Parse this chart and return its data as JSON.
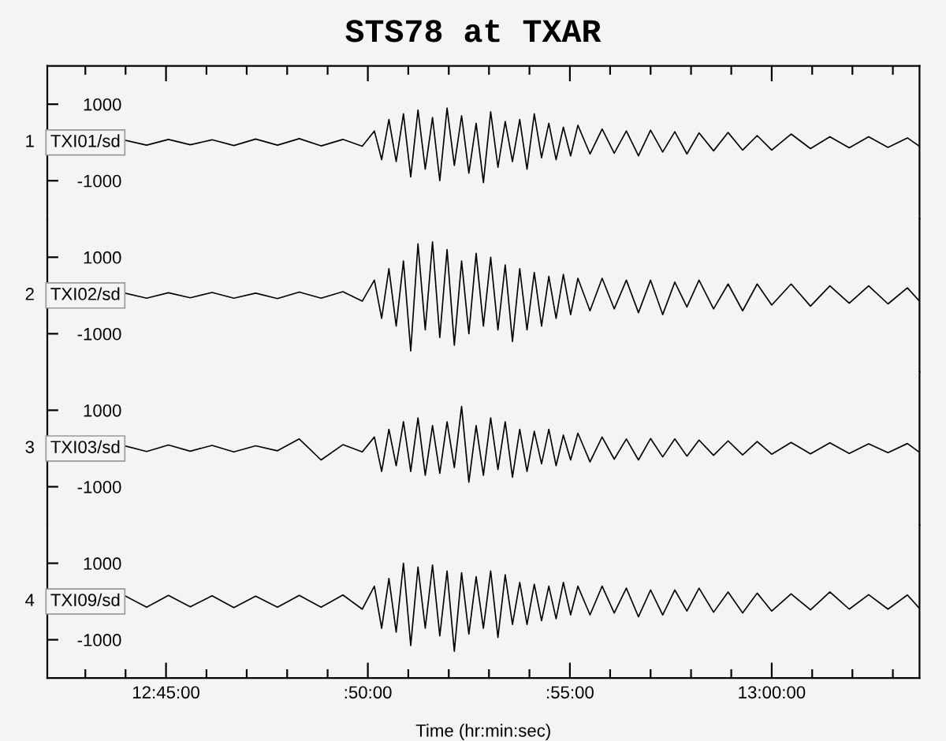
{
  "chart_data": [
    {
      "type": "line",
      "title": "STS78 at TXAR",
      "ylabel": "1",
      "tick_labels": "y",
      "xlim": [
        12.701,
        13.061
      ],
      "ylim": [
        -2000,
        2000
      ],
      "yticks": [
        1000,
        -1000
      ],
      "xticks": [
        {
          "value": 12.7167,
          "label": null
        },
        {
          "value": 12.7333,
          "label": null
        },
        {
          "value": 12.75,
          "label": null
        },
        {
          "value": 12.7667,
          "label": null
        },
        {
          "value": 12.7833,
          "label": null
        },
        {
          "value": 12.8,
          "label": null
        },
        {
          "value": 12.8167,
          "label": null
        },
        {
          "value": 12.8333,
          "label": null
        },
        {
          "value": 12.85,
          "label": null
        },
        {
          "value": 12.8667,
          "label": null
        },
        {
          "value": 12.8833,
          "label": null
        },
        {
          "value": 12.9,
          "label": null
        },
        {
          "value": 12.9167,
          "label": null
        },
        {
          "value": 12.9333,
          "label": null
        },
        {
          "value": 12.95,
          "label": null
        },
        {
          "value": 12.9667,
          "label": null
        },
        {
          "value": 12.9833,
          "label": null
        },
        {
          "value": 13.0,
          "label": null
        },
        {
          "value": 13.0167,
          "label": null
        },
        {
          "value": 13.0333,
          "label": null
        },
        {
          "value": 13.05,
          "label": null
        }
      ],
      "x": [
        12.733,
        12.742,
        12.751,
        12.76,
        12.769,
        12.778,
        12.787,
        12.796,
        12.805,
        12.814,
        12.823,
        12.831,
        12.836,
        12.839,
        12.842,
        12.845,
        12.848,
        12.851,
        12.854,
        12.857,
        12.86,
        12.863,
        12.866,
        12.869,
        12.872,
        12.875,
        12.878,
        12.881,
        12.884,
        12.887,
        12.89,
        12.893,
        12.896,
        12.899,
        12.902,
        12.905,
        12.908,
        12.911,
        12.914,
        12.917,
        12.92,
        12.925,
        12.93,
        12.935,
        12.94,
        12.945,
        12.95,
        12.955,
        12.96,
        12.965,
        12.97,
        12.976,
        12.982,
        12.988,
        12.994,
        13.0,
        13.008,
        13.016,
        13.024,
        13.032,
        13.04,
        13.048,
        13.056,
        13.061
      ],
      "series": [
        {
          "name": "TXI01/sd",
          "color": "#000000",
          "values": [
            60,
            -70,
            80,
            -60,
            70,
            -80,
            90,
            -70,
            100,
            -90,
            80,
            -100,
            300,
            -450,
            600,
            -500,
            750,
            -900,
            850,
            -700,
            650,
            -1000,
            900,
            -600,
            700,
            -800,
            500,
            -1050,
            800,
            -650,
            550,
            -500,
            600,
            -700,
            750,
            -400,
            500,
            -450,
            400,
            -350,
            450,
            -300,
            350,
            -280,
            300,
            -350,
            320,
            -250,
            280,
            -300,
            250,
            -220,
            260,
            -200,
            180,
            -200,
            220,
            -160,
            150,
            -140,
            150,
            -130,
            120,
            -100
          ]
        }
      ]
    },
    {
      "type": "line",
      "ylabel": "2",
      "tick_labels": "y",
      "xlim": [
        12.701,
        13.061
      ],
      "ylim": [
        -2000,
        2000
      ],
      "yticks": [
        1000,
        -1000
      ],
      "x": [
        12.733,
        12.742,
        12.751,
        12.76,
        12.769,
        12.778,
        12.787,
        12.796,
        12.805,
        12.814,
        12.823,
        12.831,
        12.836,
        12.839,
        12.842,
        12.845,
        12.848,
        12.851,
        12.854,
        12.857,
        12.86,
        12.863,
        12.866,
        12.869,
        12.872,
        12.875,
        12.878,
        12.881,
        12.884,
        12.887,
        12.89,
        12.893,
        12.896,
        12.899,
        12.902,
        12.905,
        12.908,
        12.911,
        12.914,
        12.917,
        12.92,
        12.925,
        12.93,
        12.935,
        12.94,
        12.945,
        12.95,
        12.955,
        12.96,
        12.965,
        12.97,
        12.976,
        12.982,
        12.988,
        12.994,
        13.0,
        13.008,
        13.016,
        13.024,
        13.032,
        13.04,
        13.048,
        13.056,
        13.061
      ],
      "series": [
        {
          "name": "TXI02/sd",
          "color": "#000000",
          "values": [
            60,
            -70,
            70,
            -60,
            80,
            -70,
            60,
            -80,
            90,
            -70,
            100,
            -150,
            400,
            -600,
            700,
            -800,
            900,
            -1450,
            1350,
            -900,
            1400,
            -1100,
            1200,
            -1300,
            900,
            -1000,
            1100,
            -800,
            1000,
            -900,
            800,
            -1200,
            700,
            -900,
            600,
            -800,
            500,
            -600,
            550,
            -500,
            450,
            -400,
            450,
            -350,
            400,
            -450,
            400,
            -500,
            350,
            -300,
            400,
            -350,
            300,
            -400,
            300,
            -250,
            300,
            -280,
            250,
            -200,
            250,
            -220,
            200,
            -150
          ]
        }
      ]
    },
    {
      "type": "line",
      "ylabel": "3",
      "tick_labels": "y",
      "xlim": [
        12.701,
        13.061
      ],
      "ylim": [
        -2000,
        2000
      ],
      "yticks": [
        1000,
        -1000
      ],
      "x": [
        12.733,
        12.742,
        12.751,
        12.76,
        12.769,
        12.778,
        12.787,
        12.796,
        12.805,
        12.814,
        12.823,
        12.831,
        12.836,
        12.839,
        12.842,
        12.845,
        12.848,
        12.851,
        12.854,
        12.857,
        12.86,
        12.863,
        12.866,
        12.869,
        12.872,
        12.875,
        12.878,
        12.881,
        12.884,
        12.887,
        12.89,
        12.893,
        12.896,
        12.899,
        12.902,
        12.905,
        12.908,
        12.911,
        12.914,
        12.917,
        12.92,
        12.925,
        12.93,
        12.935,
        12.94,
        12.945,
        12.95,
        12.955,
        12.96,
        12.965,
        12.97,
        12.976,
        12.982,
        12.988,
        12.994,
        13.0,
        13.008,
        13.016,
        13.024,
        13.032,
        13.04,
        13.048,
        13.056,
        13.061
      ],
      "series": [
        {
          "name": "TXI03/sd",
          "color": "#000000",
          "values": [
            70,
            -80,
            90,
            -70,
            80,
            -90,
            70,
            -60,
            250,
            -300,
            100,
            -90,
            300,
            -600,
            500,
            -450,
            700,
            -600,
            800,
            -700,
            600,
            -650,
            700,
            -500,
            1100,
            -880,
            600,
            -700,
            800,
            -550,
            700,
            -750,
            500,
            -600,
            450,
            -400,
            500,
            -450,
            350,
            -300,
            400,
            -350,
            300,
            -280,
            250,
            -300,
            260,
            -220,
            250,
            -200,
            220,
            -180,
            200,
            -170,
            180,
            -150,
            160,
            -140,
            150,
            -130,
            120,
            -110,
            130,
            -100
          ]
        }
      ]
    },
    {
      "type": "line",
      "ylabel": "4",
      "xlabel": "Time (hr:min:sec)",
      "xlim": [
        12.701,
        13.061
      ],
      "ylim": [
        -2000,
        2000
      ],
      "yticks": [
        1000,
        -1000
      ],
      "xticks": [
        {
          "value": 12.7167,
          "label": null
        },
        {
          "value": 12.7333,
          "label": null
        },
        {
          "value": 12.75,
          "label": "12:45:00"
        },
        {
          "value": 12.7667,
          "label": null
        },
        {
          "value": 12.7833,
          "label": null
        },
        {
          "value": 12.8,
          "label": null
        },
        {
          "value": 12.8167,
          "label": null
        },
        {
          "value": 12.8333,
          "label": ":50:00"
        },
        {
          "value": 12.85,
          "label": null
        },
        {
          "value": 12.8667,
          "label": null
        },
        {
          "value": 12.8833,
          "label": null
        },
        {
          "value": 12.9,
          "label": null
        },
        {
          "value": 12.9167,
          "label": ":55:00"
        },
        {
          "value": 12.9333,
          "label": null
        },
        {
          "value": 12.95,
          "label": null
        },
        {
          "value": 12.9667,
          "label": null
        },
        {
          "value": 12.9833,
          "label": null
        },
        {
          "value": 13.0,
          "label": "13:00:00"
        },
        {
          "value": 13.0167,
          "label": null
        },
        {
          "value": 13.0333,
          "label": null
        },
        {
          "value": 13.05,
          "label": null
        }
      ],
      "x": [
        12.733,
        12.742,
        12.751,
        12.76,
        12.769,
        12.778,
        12.787,
        12.796,
        12.805,
        12.814,
        12.823,
        12.831,
        12.836,
        12.839,
        12.842,
        12.845,
        12.848,
        12.851,
        12.854,
        12.857,
        12.86,
        12.863,
        12.866,
        12.869,
        12.872,
        12.875,
        12.878,
        12.881,
        12.884,
        12.887,
        12.89,
        12.893,
        12.896,
        12.899,
        12.902,
        12.905,
        12.908,
        12.911,
        12.914,
        12.917,
        12.92,
        12.925,
        12.93,
        12.935,
        12.94,
        12.945,
        12.95,
        12.955,
        12.96,
        12.965,
        12.97,
        12.976,
        12.982,
        12.988,
        12.994,
        13.0,
        13.008,
        13.016,
        13.024,
        13.032,
        13.04,
        13.048,
        13.056,
        13.061
      ],
      "series": [
        {
          "name": "TXI09/sd",
          "color": "#000000",
          "values": [
            150,
            -150,
            160,
            -140,
            150,
            -160,
            140,
            -150,
            160,
            -150,
            170,
            -200,
            400,
            -700,
            600,
            -800,
            1000,
            -1150,
            900,
            -700,
            950,
            -900,
            800,
            -1300,
            750,
            -850,
            650,
            -700,
            800,
            -940,
            700,
            -600,
            500,
            -600,
            450,
            -500,
            400,
            -450,
            500,
            -350,
            400,
            -350,
            400,
            -300,
            350,
            -400,
            300,
            -350,
            300,
            -250,
            350,
            -280,
            250,
            -300,
            220,
            -250,
            200,
            -220,
            250,
            -200,
            180,
            -200,
            170,
            -180
          ]
        }
      ]
    }
  ]
}
